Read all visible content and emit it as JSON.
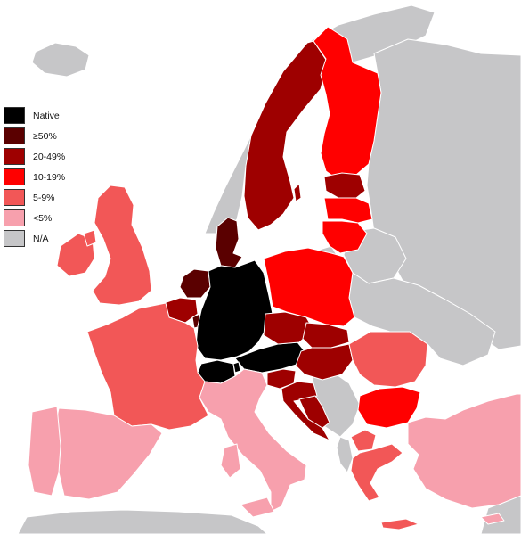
{
  "legend": [
    {
      "label": "Native",
      "color": "#000000"
    },
    {
      "label": "≥50%",
      "color": "#5a0000"
    },
    {
      "label": "20-49%",
      "color": "#9e0000"
    },
    {
      "label": "10-19%",
      "color": "#ff0000"
    },
    {
      "label": "5-9%",
      "color": "#f25757"
    },
    {
      "label": "<5%",
      "color": "#f7a0ad"
    },
    {
      "label": "N/A",
      "color": "#c6c6c8"
    }
  ],
  "colors": {
    "sea": "#ffffff",
    "border": "#ffffff"
  },
  "regions": [
    {
      "name": "germany",
      "category": "Native"
    },
    {
      "name": "austria",
      "category": "Native"
    },
    {
      "name": "switzerland",
      "category": "Native"
    },
    {
      "name": "liechtenstein",
      "category": "Native"
    },
    {
      "name": "denmark",
      "category": "≥50%"
    },
    {
      "name": "netherlands",
      "category": "≥50%"
    },
    {
      "name": "luxembourg",
      "category": "≥50%"
    },
    {
      "name": "sweden",
      "category": "20-49%"
    },
    {
      "name": "belgium",
      "category": "20-49%"
    },
    {
      "name": "czechia",
      "category": "20-49%"
    },
    {
      "name": "slovakia",
      "category": "20-49%"
    },
    {
      "name": "hungary",
      "category": "20-49%"
    },
    {
      "name": "slovenia",
      "category": "20-49%"
    },
    {
      "name": "croatia",
      "category": "20-49%"
    },
    {
      "name": "estonia",
      "category": "20-49%"
    },
    {
      "name": "bosnia",
      "category": "20-49%"
    },
    {
      "name": "finland",
      "category": "10-19%"
    },
    {
      "name": "poland",
      "category": "10-19%"
    },
    {
      "name": "latvia",
      "category": "10-19%"
    },
    {
      "name": "lithuania",
      "category": "10-19%"
    },
    {
      "name": "bulgaria",
      "category": "10-19%"
    },
    {
      "name": "france",
      "category": "5-9%"
    },
    {
      "name": "united-kingdom",
      "category": "5-9%"
    },
    {
      "name": "ireland",
      "category": "5-9%"
    },
    {
      "name": "romania",
      "category": "5-9%"
    },
    {
      "name": "greece",
      "category": "5-9%"
    },
    {
      "name": "north-macedonia",
      "category": "5-9%"
    },
    {
      "name": "spain",
      "category": "<5%"
    },
    {
      "name": "portugal",
      "category": "<5%"
    },
    {
      "name": "italy",
      "category": "<5%"
    },
    {
      "name": "turkey",
      "category": "<5%"
    },
    {
      "name": "cyprus",
      "category": "<5%"
    },
    {
      "name": "norway",
      "category": "N/A"
    },
    {
      "name": "iceland",
      "category": "N/A"
    },
    {
      "name": "russia",
      "category": "N/A"
    },
    {
      "name": "belarus",
      "category": "N/A"
    },
    {
      "name": "ukraine",
      "category": "N/A"
    },
    {
      "name": "serbia",
      "category": "N/A"
    },
    {
      "name": "albania",
      "category": "N/A"
    },
    {
      "name": "north-africa",
      "category": "N/A"
    }
  ]
}
